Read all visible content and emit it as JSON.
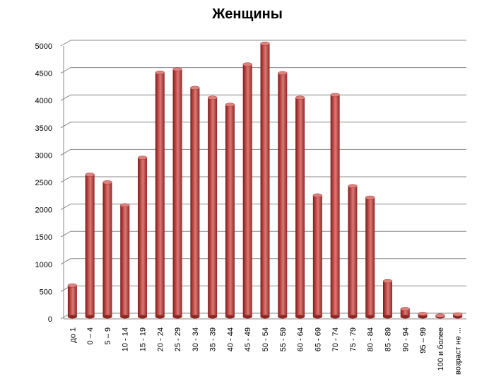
{
  "chart_data": {
    "type": "bar",
    "title": "Женщины",
    "categories": [
      "до 1",
      "0 – 4",
      "5 – 9",
      "10 - 14",
      "15 - 19",
      "20 - 24",
      "25 - 29",
      "30 - 34",
      "35 - 39",
      "40 - 44",
      "45 - 49",
      "50 - 54",
      "55 - 59",
      "60 - 64",
      "65 - 69",
      "70 - 74",
      "75 - 79",
      "80 - 84",
      "85 - 89",
      "90 - 94",
      "95 – 99",
      "100 и более",
      "возраст не ..."
    ],
    "values": [
      560,
      2590,
      2450,
      2030,
      2900,
      4460,
      4520,
      4180,
      4000,
      3870,
      4610,
      4990,
      4450,
      4000,
      2210,
      4050,
      2380,
      2170,
      640,
      130,
      40,
      10,
      30
    ],
    "color": "#c0504d",
    "ylim": [
      0,
      5000
    ],
    "yticks": [
      0,
      500,
      1000,
      1500,
      2000,
      2500,
      3000,
      3500,
      4000,
      4500,
      5000
    ],
    "grid": true
  }
}
